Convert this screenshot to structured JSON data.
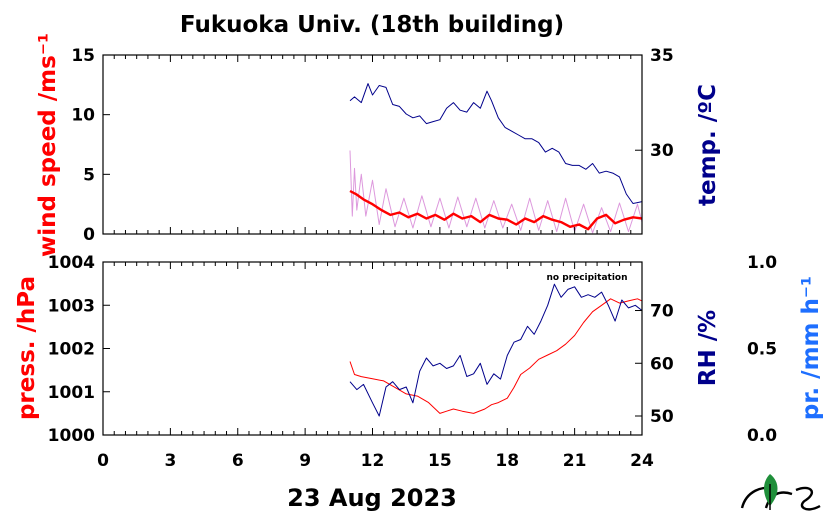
{
  "title": "Fukuoka Univ. (18th building)",
  "xlabel": "23 Aug 2023",
  "note": "no precipitation",
  "colors": {
    "wind": "#ff0000",
    "wind_raw": "#dd99dd",
    "temp": "#00008b",
    "press": "#ff0000",
    "rh": "#00008b",
    "precip": "#1e6fff"
  },
  "chart_data": [
    {
      "type": "line",
      "x_ticks": [
        "0",
        "3",
        "6",
        "9",
        "12",
        "15",
        "18",
        "21",
        "24"
      ],
      "xlim": [
        0,
        24
      ],
      "y_left": {
        "label": "wind speed /ms⁻¹",
        "lim": [
          0,
          15
        ],
        "ticks": [
          "0",
          "5",
          "10",
          "15"
        ]
      },
      "y_right": {
        "label": "temp. /ºC",
        "lim": [
          25.6,
          35
        ],
        "ticks": [
          "30",
          "35"
        ]
      },
      "series": [
        {
          "axis": "left",
          "role": "raw",
          "x": [
            11.0,
            11.1,
            11.2,
            11.3,
            11.5,
            11.7,
            12.0,
            12.3,
            12.6,
            13.0,
            13.4,
            13.8,
            14.2,
            14.6,
            15.0,
            15.4,
            15.8,
            16.2,
            16.6,
            17.0,
            17.4,
            17.8,
            18.2,
            18.6,
            19.0,
            19.4,
            19.8,
            20.2,
            20.6,
            21.0,
            21.4,
            21.8,
            22.2,
            22.6,
            23.0,
            23.4,
            23.8,
            24.0
          ],
          "values": [
            7.0,
            1.5,
            5.5,
            2.0,
            5.0,
            1.5,
            4.5,
            0.8,
            3.8,
            0.6,
            3.0,
            0.5,
            3.2,
            0.6,
            3.0,
            0.5,
            3.1,
            0.6,
            3.0,
            0.5,
            2.8,
            0.5,
            2.5,
            0.3,
            3.0,
            0.3,
            2.8,
            0.2,
            3.0,
            0.2,
            2.5,
            0.1,
            2.2,
            0.2,
            2.6,
            0.2,
            2.5,
            1.0
          ]
        },
        {
          "axis": "left",
          "role": "mean",
          "x": [
            11.0,
            11.3,
            11.6,
            12.0,
            12.4,
            12.8,
            13.2,
            13.6,
            14.0,
            14.4,
            14.8,
            15.2,
            15.6,
            16.0,
            16.4,
            16.8,
            17.2,
            17.6,
            18.0,
            18.4,
            18.8,
            19.2,
            19.6,
            20.0,
            20.4,
            20.8,
            21.2,
            21.6,
            22.0,
            22.4,
            22.8,
            23.2,
            23.6,
            24.0
          ],
          "values": [
            3.6,
            3.3,
            2.9,
            2.5,
            2.0,
            1.6,
            1.8,
            1.4,
            1.7,
            1.3,
            1.6,
            1.2,
            1.7,
            1.3,
            1.5,
            1.0,
            1.6,
            1.3,
            1.2,
            0.8,
            1.3,
            1.0,
            1.5,
            1.2,
            1.0,
            0.6,
            0.8,
            0.4,
            1.3,
            1.6,
            0.9,
            1.2,
            1.4,
            1.3
          ]
        },
        {
          "axis": "right",
          "role": "temperature",
          "x": [
            11.0,
            11.2,
            11.5,
            11.8,
            12.0,
            12.3,
            12.6,
            12.9,
            13.2,
            13.5,
            13.8,
            14.1,
            14.4,
            14.7,
            15.0,
            15.3,
            15.6,
            15.9,
            16.2,
            16.5,
            16.8,
            17.1,
            17.3,
            17.6,
            17.9,
            18.2,
            18.5,
            18.8,
            19.1,
            19.4,
            19.7,
            20.0,
            20.3,
            20.6,
            20.9,
            21.2,
            21.5,
            21.8,
            22.1,
            22.4,
            22.7,
            23.0,
            23.3,
            23.6,
            24.0
          ],
          "values": [
            32.6,
            32.8,
            32.5,
            33.5,
            32.9,
            33.4,
            33.3,
            32.4,
            32.3,
            31.9,
            31.7,
            31.8,
            31.4,
            31.5,
            31.6,
            32.2,
            32.5,
            32.1,
            32.0,
            32.5,
            32.2,
            33.1,
            32.6,
            31.7,
            31.2,
            31.0,
            30.8,
            30.6,
            30.6,
            30.4,
            29.9,
            30.1,
            29.9,
            29.3,
            29.2,
            29.2,
            29.0,
            29.3,
            28.8,
            28.9,
            28.8,
            28.6,
            27.7,
            27.2,
            27.3
          ]
        }
      ]
    },
    {
      "type": "line",
      "x_ticks": [
        "0",
        "3",
        "6",
        "9",
        "12",
        "15",
        "18",
        "21",
        "24"
      ],
      "xlim": [
        0,
        24
      ],
      "y_left": {
        "label": "press. /hPa",
        "lim": [
          1000,
          1004
        ],
        "ticks": [
          "1000",
          "1001",
          "1002",
          "1003",
          "1004"
        ]
      },
      "y_right": {
        "label": "RH /%",
        "lim": [
          46.4,
          79.2
        ],
        "ticks": [
          "50",
          "60",
          "70"
        ]
      },
      "y_right2": {
        "label": "pr. /mm h⁻¹",
        "lim": [
          0.0,
          1.0
        ],
        "ticks": [
          "0.0",
          "0.5",
          "1.0"
        ]
      },
      "series": [
        {
          "axis": "left",
          "role": "pressure",
          "x": [
            11.0,
            11.2,
            11.5,
            12.0,
            12.5,
            13.0,
            13.5,
            14.0,
            14.5,
            15.0,
            15.3,
            15.6,
            16.0,
            16.5,
            17.0,
            17.3,
            17.6,
            18.0,
            18.3,
            18.6,
            19.0,
            19.4,
            19.8,
            20.2,
            20.6,
            21.0,
            21.4,
            21.8,
            22.2,
            22.6,
            23.0,
            23.4,
            23.8,
            24.0
          ],
          "values": [
            1001.7,
            1001.4,
            1001.35,
            1001.3,
            1001.25,
            1001.1,
            1000.95,
            1000.9,
            1000.75,
            1000.5,
            1000.55,
            1000.6,
            1000.55,
            1000.5,
            1000.6,
            1000.7,
            1000.75,
            1000.85,
            1001.1,
            1001.4,
            1001.55,
            1001.75,
            1001.85,
            1001.95,
            1002.1,
            1002.3,
            1002.6,
            1002.85,
            1003.0,
            1003.15,
            1003.05,
            1003.1,
            1003.15,
            1003.1
          ]
        },
        {
          "axis": "right",
          "role": "relative humidity",
          "x": [
            11.0,
            11.3,
            11.6,
            12.0,
            12.3,
            12.6,
            12.9,
            13.2,
            13.5,
            13.8,
            14.1,
            14.4,
            14.7,
            15.0,
            15.3,
            15.6,
            15.9,
            16.2,
            16.5,
            16.8,
            17.1,
            17.4,
            17.7,
            18.0,
            18.3,
            18.6,
            18.9,
            19.2,
            19.5,
            19.8,
            20.1,
            20.4,
            20.7,
            21.0,
            21.3,
            21.6,
            21.9,
            22.2,
            22.5,
            22.8,
            23.1,
            23.4,
            23.7,
            24.0
          ],
          "values": [
            56.5,
            55.0,
            56.0,
            52.5,
            50.0,
            55.5,
            56.5,
            55.0,
            55.5,
            52.5,
            58.5,
            61.0,
            59.5,
            60.0,
            59.0,
            59.5,
            61.5,
            57.5,
            58.0,
            60.0,
            56.0,
            58.0,
            57.0,
            61.5,
            64.0,
            64.5,
            67.0,
            65.5,
            68.0,
            71.0,
            75.0,
            72.5,
            74.0,
            74.5,
            72.5,
            73.0,
            72.5,
            73.5,
            71.0,
            68.0,
            72.0,
            70.5,
            71.0,
            70.0
          ]
        }
      ]
    }
  ]
}
